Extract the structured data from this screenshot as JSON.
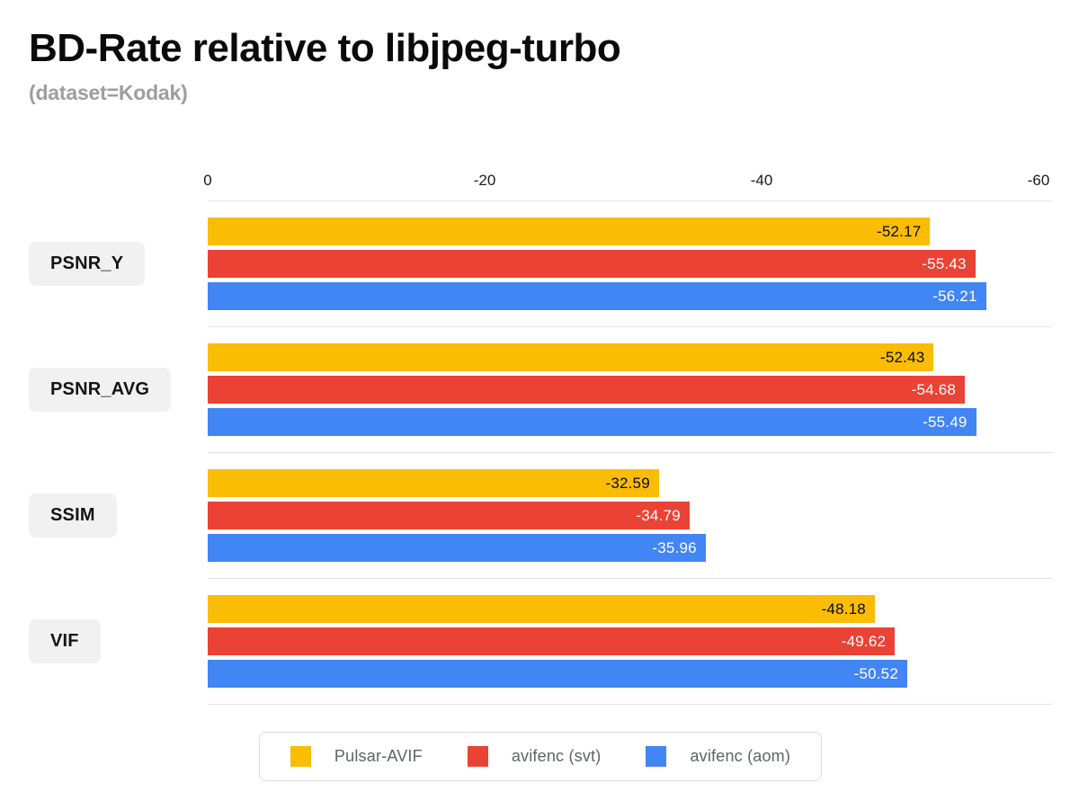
{
  "header": {
    "title": "BD-Rate relative to libjpeg-turbo",
    "subtitle": "(dataset=Kodak)"
  },
  "chart_data": {
    "type": "bar",
    "orientation": "horizontal",
    "title": "BD-Rate relative to libjpeg-turbo",
    "subtitle": "(dataset=Kodak)",
    "categories": [
      "PSNR_Y",
      "PSNR_AVG",
      "SSIM",
      "VIF"
    ],
    "series": [
      {
        "name": "Pulsar-AVIF",
        "color": "#FBBC04",
        "value_label_color": "#0a0a0a",
        "values": [
          -52.17,
          -52.43,
          -32.59,
          -48.18
        ]
      },
      {
        "name": "avifenc (svt)",
        "color": "#EA4335",
        "value_label_color": "#ffffff",
        "values": [
          -55.43,
          -54.68,
          -34.79,
          -49.62
        ]
      },
      {
        "name": "avifenc (aom)",
        "color": "#4285F4",
        "value_label_color": "#ffffff",
        "values": [
          -56.21,
          -55.49,
          -35.96,
          -50.52
        ]
      }
    ],
    "xlim": [
      0,
      -60
    ],
    "x_ticks": [
      0,
      -20,
      -40,
      -60
    ],
    "value_label_decimals": 2,
    "grid": "horizontal-group-separators",
    "legend_position": "bottom-center",
    "colors": {
      "separator_line": "#e3e3e3",
      "category_box_bg": "#f1f1f1",
      "legend_border": "#dcdcdc",
      "legend_text": "#5f6368",
      "subtitle_text": "#9e9e9e",
      "tick_text": "#1b1b1b"
    }
  }
}
